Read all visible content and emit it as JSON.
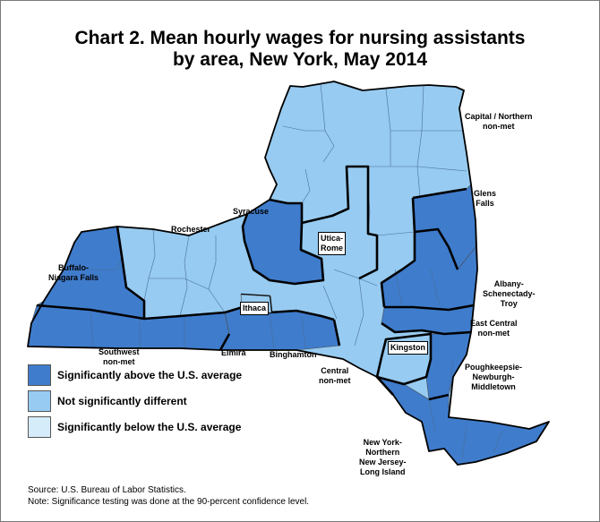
{
  "title_line1": "Chart 2. Mean hourly wages for nursing assistants",
  "title_line2": "by area, New York, May 2014",
  "colors": {
    "above": "#3f7ccc",
    "not_different": "#97cbf1",
    "below": "#d5ecfb"
  },
  "areas": [
    {
      "label": "Capital / Northern non-met",
      "category": "not_different"
    },
    {
      "label": "Glens Falls",
      "category": "above"
    },
    {
      "label": "Syracuse",
      "category": "above"
    },
    {
      "label": "Rochester",
      "category": "not_different"
    },
    {
      "label": "Utica-Rome",
      "category": "not_different"
    },
    {
      "label": "Buffalo-Niagara Falls",
      "category": "above"
    },
    {
      "label": "Albany-Schenectady-Troy",
      "category": "above"
    },
    {
      "label": "Ithaca",
      "category": "not_different"
    },
    {
      "label": "East Central non-met",
      "category": "above"
    },
    {
      "label": "Southwest non-met",
      "category": "above"
    },
    {
      "label": "Elmira",
      "category": "above"
    },
    {
      "label": "Binghamton",
      "category": "above"
    },
    {
      "label": "Kingston",
      "category": "not_different"
    },
    {
      "label": "Central non-met",
      "category": "not_different"
    },
    {
      "label": "Poughkeepsie-Newburgh-Middletown",
      "category": "above"
    },
    {
      "label": "New York-Northern New Jersey-Long Island",
      "category": "above"
    }
  ],
  "labels": {
    "capital_1": "Capital / Northern",
    "capital_2": "non-met",
    "glens_1": "Glens",
    "glens_2": "Falls",
    "syracuse": "Syracuse",
    "rochester": "Rochester",
    "utica_1": "Utica-",
    "utica_2": "Rome",
    "buffalo_1": "Buffalo-",
    "buffalo_2": "Niagara Falls",
    "albany_1": "Albany-",
    "albany_2": "Schenectady-",
    "albany_3": "Troy",
    "ithaca": "Ithaca",
    "eastcentral_1": "East Central",
    "eastcentral_2": "non-met",
    "southwest_1": "Southwest",
    "southwest_2": "non-met",
    "elmira": "Elmira",
    "binghamton": "Binghamton",
    "kingston": "Kingston",
    "central_1": "Central",
    "central_2": "non-met",
    "pough_1": "Poughkeepsie-",
    "pough_2": "Newburgh-",
    "pough_3": "Middletown",
    "ny_1": "New York-",
    "ny_2": "Northern",
    "ny_3": "New Jersey-",
    "ny_4": "Long Island"
  },
  "legend": [
    {
      "label": "Significantly above the U.S. average",
      "category": "above"
    },
    {
      "label": "Not significantly different",
      "category": "not_different"
    },
    {
      "label": "Significantly below the U.S. average",
      "category": "below"
    }
  ],
  "source": "Source: U.S. Bureau of Labor Statistics.",
  "note": "Note: Significance testing was done at the 90-percent confidence level."
}
